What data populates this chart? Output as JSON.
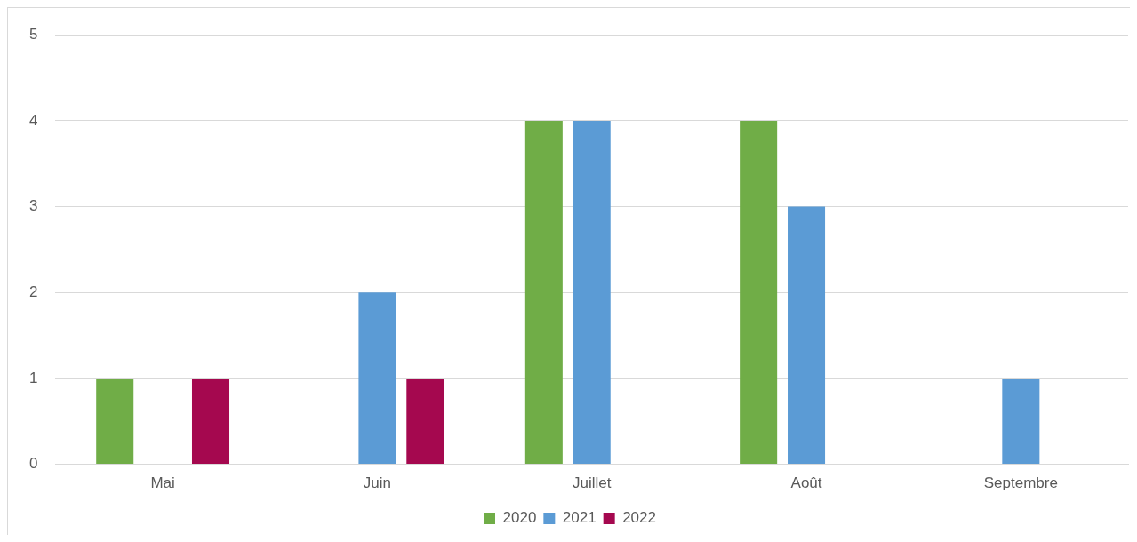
{
  "chart_data": {
    "type": "bar",
    "categories": [
      "Mai",
      "Juin",
      "Juillet",
      "Août",
      "Septembre"
    ],
    "series": [
      {
        "name": "2020",
        "color": "#70ad47",
        "values": [
          1,
          0,
          4,
          4,
          0
        ]
      },
      {
        "name": "2021",
        "color": "#5b9bd5",
        "values": [
          0,
          2,
          4,
          3,
          1
        ]
      },
      {
        "name": "2022",
        "color": "#a5084f",
        "values": [
          1,
          1,
          0,
          0,
          0
        ]
      }
    ],
    "ylim": [
      0,
      5
    ],
    "yticks": [
      0,
      1,
      2,
      3,
      4,
      5
    ],
    "grid": "y",
    "legend": "bottom"
  }
}
